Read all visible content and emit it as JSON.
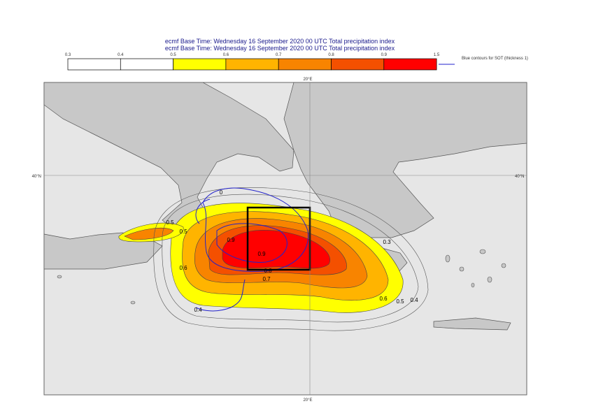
{
  "header": {
    "line1": "ecmf  Base Time: Wednesday 16 September 2020 00 UTC Total precipitation index",
    "line2": "ecmf  Base Time: Wednesday 16 September 2020 00 UTC Total precipitation index"
  },
  "colorbar": {
    "ticks": [
      "0.3",
      "0.4",
      "0.5",
      "0.6",
      "0.7",
      "0.8",
      "0.9",
      "1.5"
    ],
    "colors": [
      "#ffffff",
      "#ffffff",
      "#ffff00",
      "#ffb400",
      "#f88400",
      "#f45000",
      "#ff0000"
    ],
    "note": "Blue contours for SOT (thickness 1)"
  },
  "map": {
    "lon_top": "20°E",
    "lon_bottom": "20°E",
    "lat_left": "40°N",
    "lat_right": "40°N",
    "contour_labels": [
      "0",
      "0.5",
      "0.5",
      "0.6",
      "0.9",
      "0.9",
      "0.8",
      "0.7",
      "0.3",
      "0.6",
      "0.5",
      "0.4",
      "0.4"
    ]
  }
}
